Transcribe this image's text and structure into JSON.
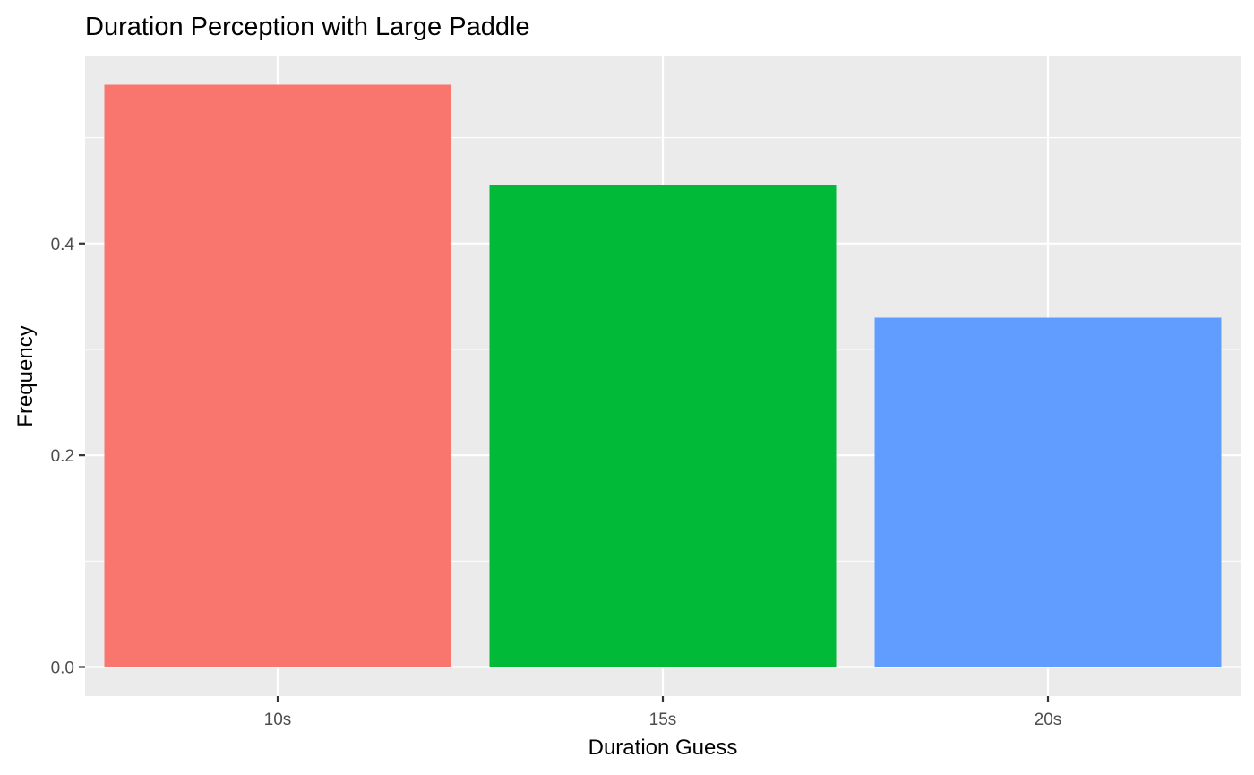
{
  "chart_data": {
    "type": "bar",
    "title": "Duration Perception with Large Paddle",
    "xlabel": "Duration Guess",
    "ylabel": "Frequency",
    "categories": [
      "10s",
      "15s",
      "20s"
    ],
    "values": [
      0.55,
      0.455,
      0.33
    ],
    "bar_colors": [
      "#F8766D",
      "#00BA38",
      "#619CFF"
    ],
    "ylim": [
      -0.0275,
      0.5775
    ],
    "y_ticks": [
      0.0,
      0.2,
      0.4
    ],
    "y_tick_labels": [
      "0.0",
      "0.2",
      "0.4"
    ],
    "grid": true,
    "legend": "none",
    "panel_background": "#EBEBEB",
    "gridline_color": "#FFFFFF"
  }
}
